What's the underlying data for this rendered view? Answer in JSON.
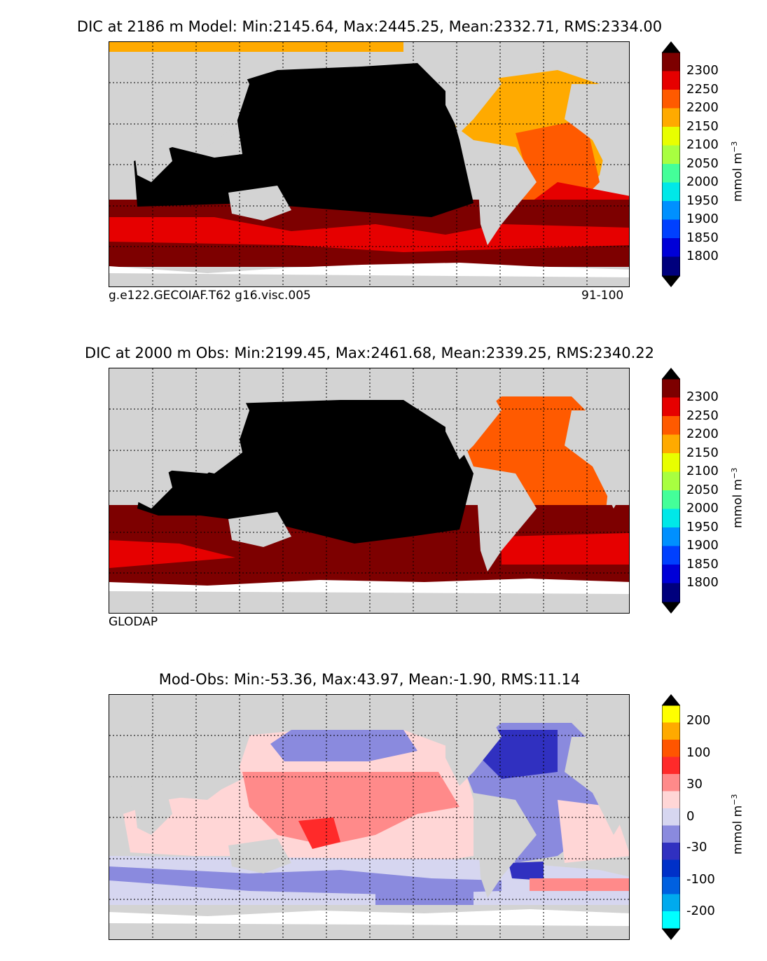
{
  "panels": [
    {
      "title": "DIC at 2186 m Model: Min:2145.64, Max:2445.25, Mean:2332.71, RMS:2334.00",
      "caption_left": "g.e122.GECOIAF.T62 g16.visc.005",
      "caption_right": "91-100",
      "units": "mmol m",
      "units_sup": "−3",
      "colorbar_ticks": [
        "2300",
        "2250",
        "2200",
        "2150",
        "2100",
        "2050",
        "2000",
        "1950",
        "1900",
        "1850",
        "1800"
      ],
      "colorbar_colors": [
        "#000000",
        "#7d0000",
        "#e60000",
        "#ff5a00",
        "#ffaa00",
        "#e8ff00",
        "#a8ff40",
        "#44ff99",
        "#00e8e8",
        "#0090ff",
        "#0040ff",
        "#0000d8",
        "#00007d",
        "#000000"
      ]
    },
    {
      "title": "DIC at 2000 m Obs: Min:2199.45, Max:2461.68, Mean:2339.25, RMS:2340.22",
      "caption_left": "GLODAP",
      "caption_right": "",
      "units": "mmol m",
      "units_sup": "−3",
      "colorbar_ticks": [
        "2300",
        "2250",
        "2200",
        "2150",
        "2100",
        "2050",
        "2000",
        "1950",
        "1900",
        "1850",
        "1800"
      ],
      "colorbar_colors": [
        "#000000",
        "#7d0000",
        "#e60000",
        "#ff5a00",
        "#ffaa00",
        "#e8ff00",
        "#a8ff40",
        "#44ff99",
        "#00e8e8",
        "#0090ff",
        "#0040ff",
        "#0000d8",
        "#00007d",
        "#000000"
      ]
    },
    {
      "title": "Mod-Obs: Min:-53.36, Max:43.97, Mean:-1.90, RMS:11.14",
      "caption_left": "",
      "caption_right": "",
      "units": "mmol m",
      "units_sup": "−3",
      "colorbar_ticks": [
        "200",
        "100",
        "30",
        "0",
        "-30",
        "-100",
        "-200"
      ],
      "colorbar_colors": [
        "#000000",
        "#ffff00",
        "#ffaa00",
        "#ff5500",
        "#ff2a2a",
        "#ff8a8a",
        "#ffd6d6",
        "#d6d6f0",
        "#8a8ade",
        "#3030c0",
        "#0030c8",
        "#0060e0",
        "#00aaee",
        "#00ffff",
        "#000000"
      ]
    }
  ]
}
